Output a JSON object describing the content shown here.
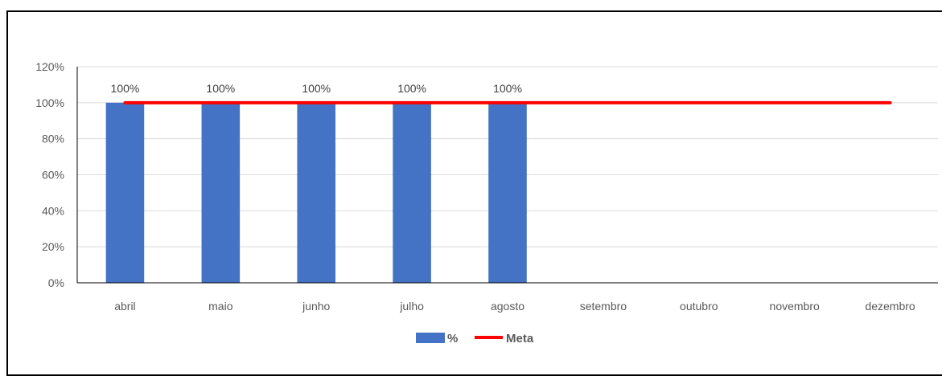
{
  "chart_data": {
    "type": "bar",
    "categories": [
      "abril",
      "maio",
      "junho",
      "julho",
      "agosto",
      "setembro",
      "outubro",
      "novembro",
      "dezembro"
    ],
    "series": [
      {
        "name": "%",
        "type": "bar",
        "color": "#4472C4",
        "values": [
          100,
          100,
          100,
          100,
          100,
          null,
          null,
          null,
          null
        ]
      },
      {
        "name": "Meta",
        "type": "line",
        "color": "#FF0000",
        "values": [
          100,
          100,
          100,
          100,
          100,
          100,
          100,
          100,
          100
        ]
      }
    ],
    "data_labels": [
      "100%",
      "100%",
      "100%",
      "100%",
      "100%"
    ],
    "y_ticks": [
      "0%",
      "20%",
      "40%",
      "60%",
      "80%",
      "100%",
      "120%"
    ],
    "ylim": [
      0,
      120
    ],
    "grid": true,
    "legend_position": "bottom"
  }
}
